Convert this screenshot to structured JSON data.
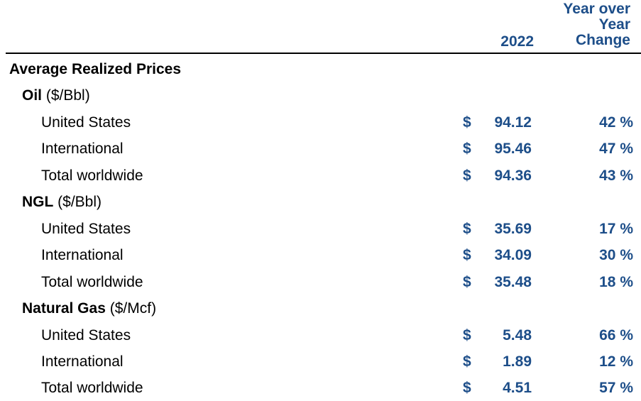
{
  "header": {
    "year": "2022",
    "yoy": [
      "Year over",
      "Year",
      "Change"
    ]
  },
  "section_title": "Average Realized Prices",
  "groups": [
    {
      "name": "Oil",
      "unit": "($/Bbl)",
      "rows": [
        {
          "label": "United States",
          "currency": "$",
          "value": "94.12",
          "change": "42 %"
        },
        {
          "label": "International",
          "currency": "$",
          "value": "95.46",
          "change": "47 %"
        },
        {
          "label": "Total worldwide",
          "currency": "$",
          "value": "94.36",
          "change": "43 %"
        }
      ]
    },
    {
      "name": "NGL",
      "unit": "($/Bbl)",
      "rows": [
        {
          "label": "United States",
          "currency": "$",
          "value": "35.69",
          "change": "17 %"
        },
        {
          "label": "International",
          "currency": "$",
          "value": "34.09",
          "change": "30 %"
        },
        {
          "label": "Total worldwide",
          "currency": "$",
          "value": "35.48",
          "change": "18 %"
        }
      ]
    },
    {
      "name": "Natural Gas",
      "unit": "($/Mcf)",
      "rows": [
        {
          "label": "United States",
          "currency": "$",
          "value": "5.48",
          "change": "66 %"
        },
        {
          "label": "International",
          "currency": "$",
          "value": "1.89",
          "change": "12 %"
        },
        {
          "label": "Total worldwide",
          "currency": "$",
          "value": "4.51",
          "change": "57 %"
        }
      ]
    }
  ],
  "colors": {
    "accent": "#1d4e89",
    "text": "#000000"
  }
}
